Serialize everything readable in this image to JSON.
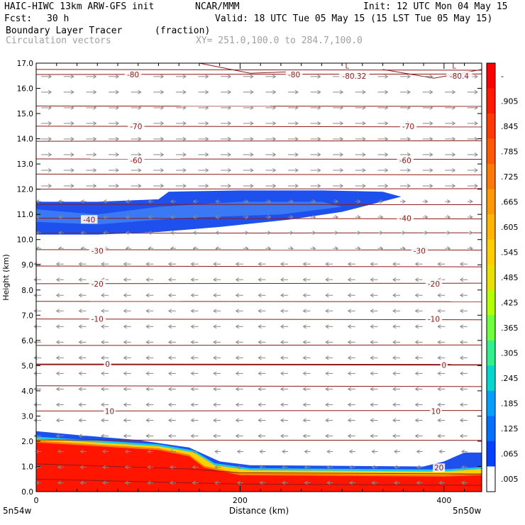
{
  "header": {
    "model": "HAIC-HIWC 13km ARW-GFS init",
    "org": "NCAR/MMM",
    "init": "Init: 12 UTC Mon 04 May 15",
    "fcst_label": "Fcst:",
    "fcst_value": "30 h",
    "valid": "Valid: 18 UTC Tue 05 May 15 (15 LST Tue 05 May 15)",
    "field1": "Boundary Layer Tracer",
    "field1_units": "(fraction)",
    "field2": "Circulation vectors",
    "xy": "XY= 251.0,100.0 to 284.7,100.0"
  },
  "chart_data": {
    "type": "heatmap",
    "ylabel": "Height (km)",
    "xlabel": "Distance (km)",
    "xlim": [
      0,
      437
    ],
    "ylim": [
      0,
      17
    ],
    "yticks": [
      "0.0",
      "1.0",
      "2.0",
      "3.0",
      "4.0",
      "5.0",
      "6.0",
      "7.0",
      "8.0",
      "9.0",
      "10.0",
      "11.0",
      "12.0",
      "13.0",
      "14.0",
      "15.0",
      "16.0",
      "17.0"
    ],
    "xticks": [
      "0",
      "200",
      "400"
    ],
    "x_end_labels": [
      "5n54w",
      "5n50w"
    ],
    "colorbar": {
      "labels": [
        "-",
        ".905",
        ".845",
        ".785",
        ".725",
        ".665",
        ".605",
        ".545",
        ".485",
        ".425",
        ".365",
        ".305",
        ".245",
        ".185",
        ".125",
        ".065",
        ".005"
      ],
      "colors": [
        "#ff0000",
        "#ff1a00",
        "#ff3a00",
        "#ff5a00",
        "#ff7a00",
        "#ff9900",
        "#ffb400",
        "#ffcc00",
        "#e8e000",
        "#b4ff00",
        "#70ff40",
        "#30f090",
        "#00d8d0",
        "#00a0ff",
        "#0070ff",
        "#0040ff",
        "#ffffff"
      ]
    },
    "isotherm_labels": [
      {
        "text": "-80",
        "x": 95,
        "y": 16.55
      },
      {
        "text": "-80",
        "x": 253,
        "y": 16.55
      },
      {
        "text": "-80.32",
        "x": 312,
        "y": 16.5
      },
      {
        "text": "-80.4",
        "x": 415,
        "y": 16.5
      },
      {
        "text": "-70",
        "x": 98,
        "y": 14.5
      },
      {
        "text": "-70",
        "x": 365,
        "y": 14.5
      },
      {
        "text": "-60",
        "x": 98,
        "y": 13.15
      },
      {
        "text": "-60",
        "x": 362,
        "y": 13.15
      },
      {
        "text": "-40",
        "x": 52,
        "y": 10.8
      },
      {
        "text": "-40",
        "x": 362,
        "y": 10.85
      },
      {
        "text": "-30",
        "x": 60,
        "y": 9.55
      },
      {
        "text": "-30",
        "x": 376,
        "y": 9.55
      },
      {
        "text": "-20",
        "x": 60,
        "y": 8.25
      },
      {
        "text": "-20",
        "x": 390,
        "y": 8.25
      },
      {
        "text": "-10",
        "x": 60,
        "y": 6.85
      },
      {
        "text": "-10",
        "x": 390,
        "y": 6.85
      },
      {
        "text": "0",
        "x": 70,
        "y": 5.07
      },
      {
        "text": "0",
        "x": 400,
        "y": 5.02
      },
      {
        "text": "10",
        "x": 72,
        "y": 3.2
      },
      {
        "text": "10",
        "x": 392,
        "y": 3.2
      },
      {
        "text": "20",
        "x": 395,
        "y": 0.95
      }
    ],
    "pressure_lows": [
      {
        "text": "L",
        "x": 305,
        "y": 16.9
      },
      {
        "text": "L",
        "x": 410,
        "y": 16.9
      }
    ],
    "tracer_upper_layer": {
      "top": [
        [
          0,
          11.5
        ],
        [
          60,
          11.5
        ],
        [
          120,
          11.6
        ],
        [
          130,
          11.9
        ],
        [
          200,
          11.95
        ],
        [
          280,
          11.95
        ],
        [
          340,
          11.9
        ],
        [
          358,
          11.7
        ]
      ],
      "bottom": [
        [
          358,
          11.7
        ],
        [
          300,
          11.1
        ],
        [
          250,
          10.8
        ],
        [
          180,
          10.5
        ],
        [
          120,
          10.3
        ],
        [
          60,
          10.2
        ],
        [
          0,
          10.2
        ]
      ],
      "core": [
        [
          0,
          11.2
        ],
        [
          60,
          11.0
        ],
        [
          120,
          11.3
        ],
        [
          200,
          11.5
        ],
        [
          280,
          11.5
        ],
        [
          300,
          11.3
        ],
        [
          240,
          11.0
        ],
        [
          140,
          10.85
        ],
        [
          60,
          10.6
        ],
        [
          0,
          10.7
        ]
      ]
    },
    "tracer_boundary_layer": {
      "blue_top": [
        [
          0,
          2.4
        ],
        [
          40,
          2.25
        ],
        [
          100,
          2.05
        ],
        [
          150,
          1.75
        ],
        [
          180,
          1.2
        ],
        [
          210,
          1.05
        ],
        [
          380,
          1.0
        ],
        [
          400,
          1.2
        ],
        [
          420,
          1.55
        ],
        [
          437,
          1.55
        ]
      ],
      "yellow_top": [
        [
          0,
          2.1
        ],
        [
          60,
          1.95
        ],
        [
          120,
          1.8
        ],
        [
          155,
          1.55
        ],
        [
          175,
          1.05
        ],
        [
          210,
          0.85
        ],
        [
          400,
          0.8
        ],
        [
          437,
          0.9
        ]
      ],
      "red_top": [
        [
          0,
          1.95
        ],
        [
          60,
          1.8
        ],
        [
          120,
          1.65
        ],
        [
          150,
          1.4
        ],
        [
          165,
          0.95
        ],
        [
          200,
          0.65
        ],
        [
          400,
          0.6
        ],
        [
          437,
          0.65
        ]
      ]
    }
  }
}
